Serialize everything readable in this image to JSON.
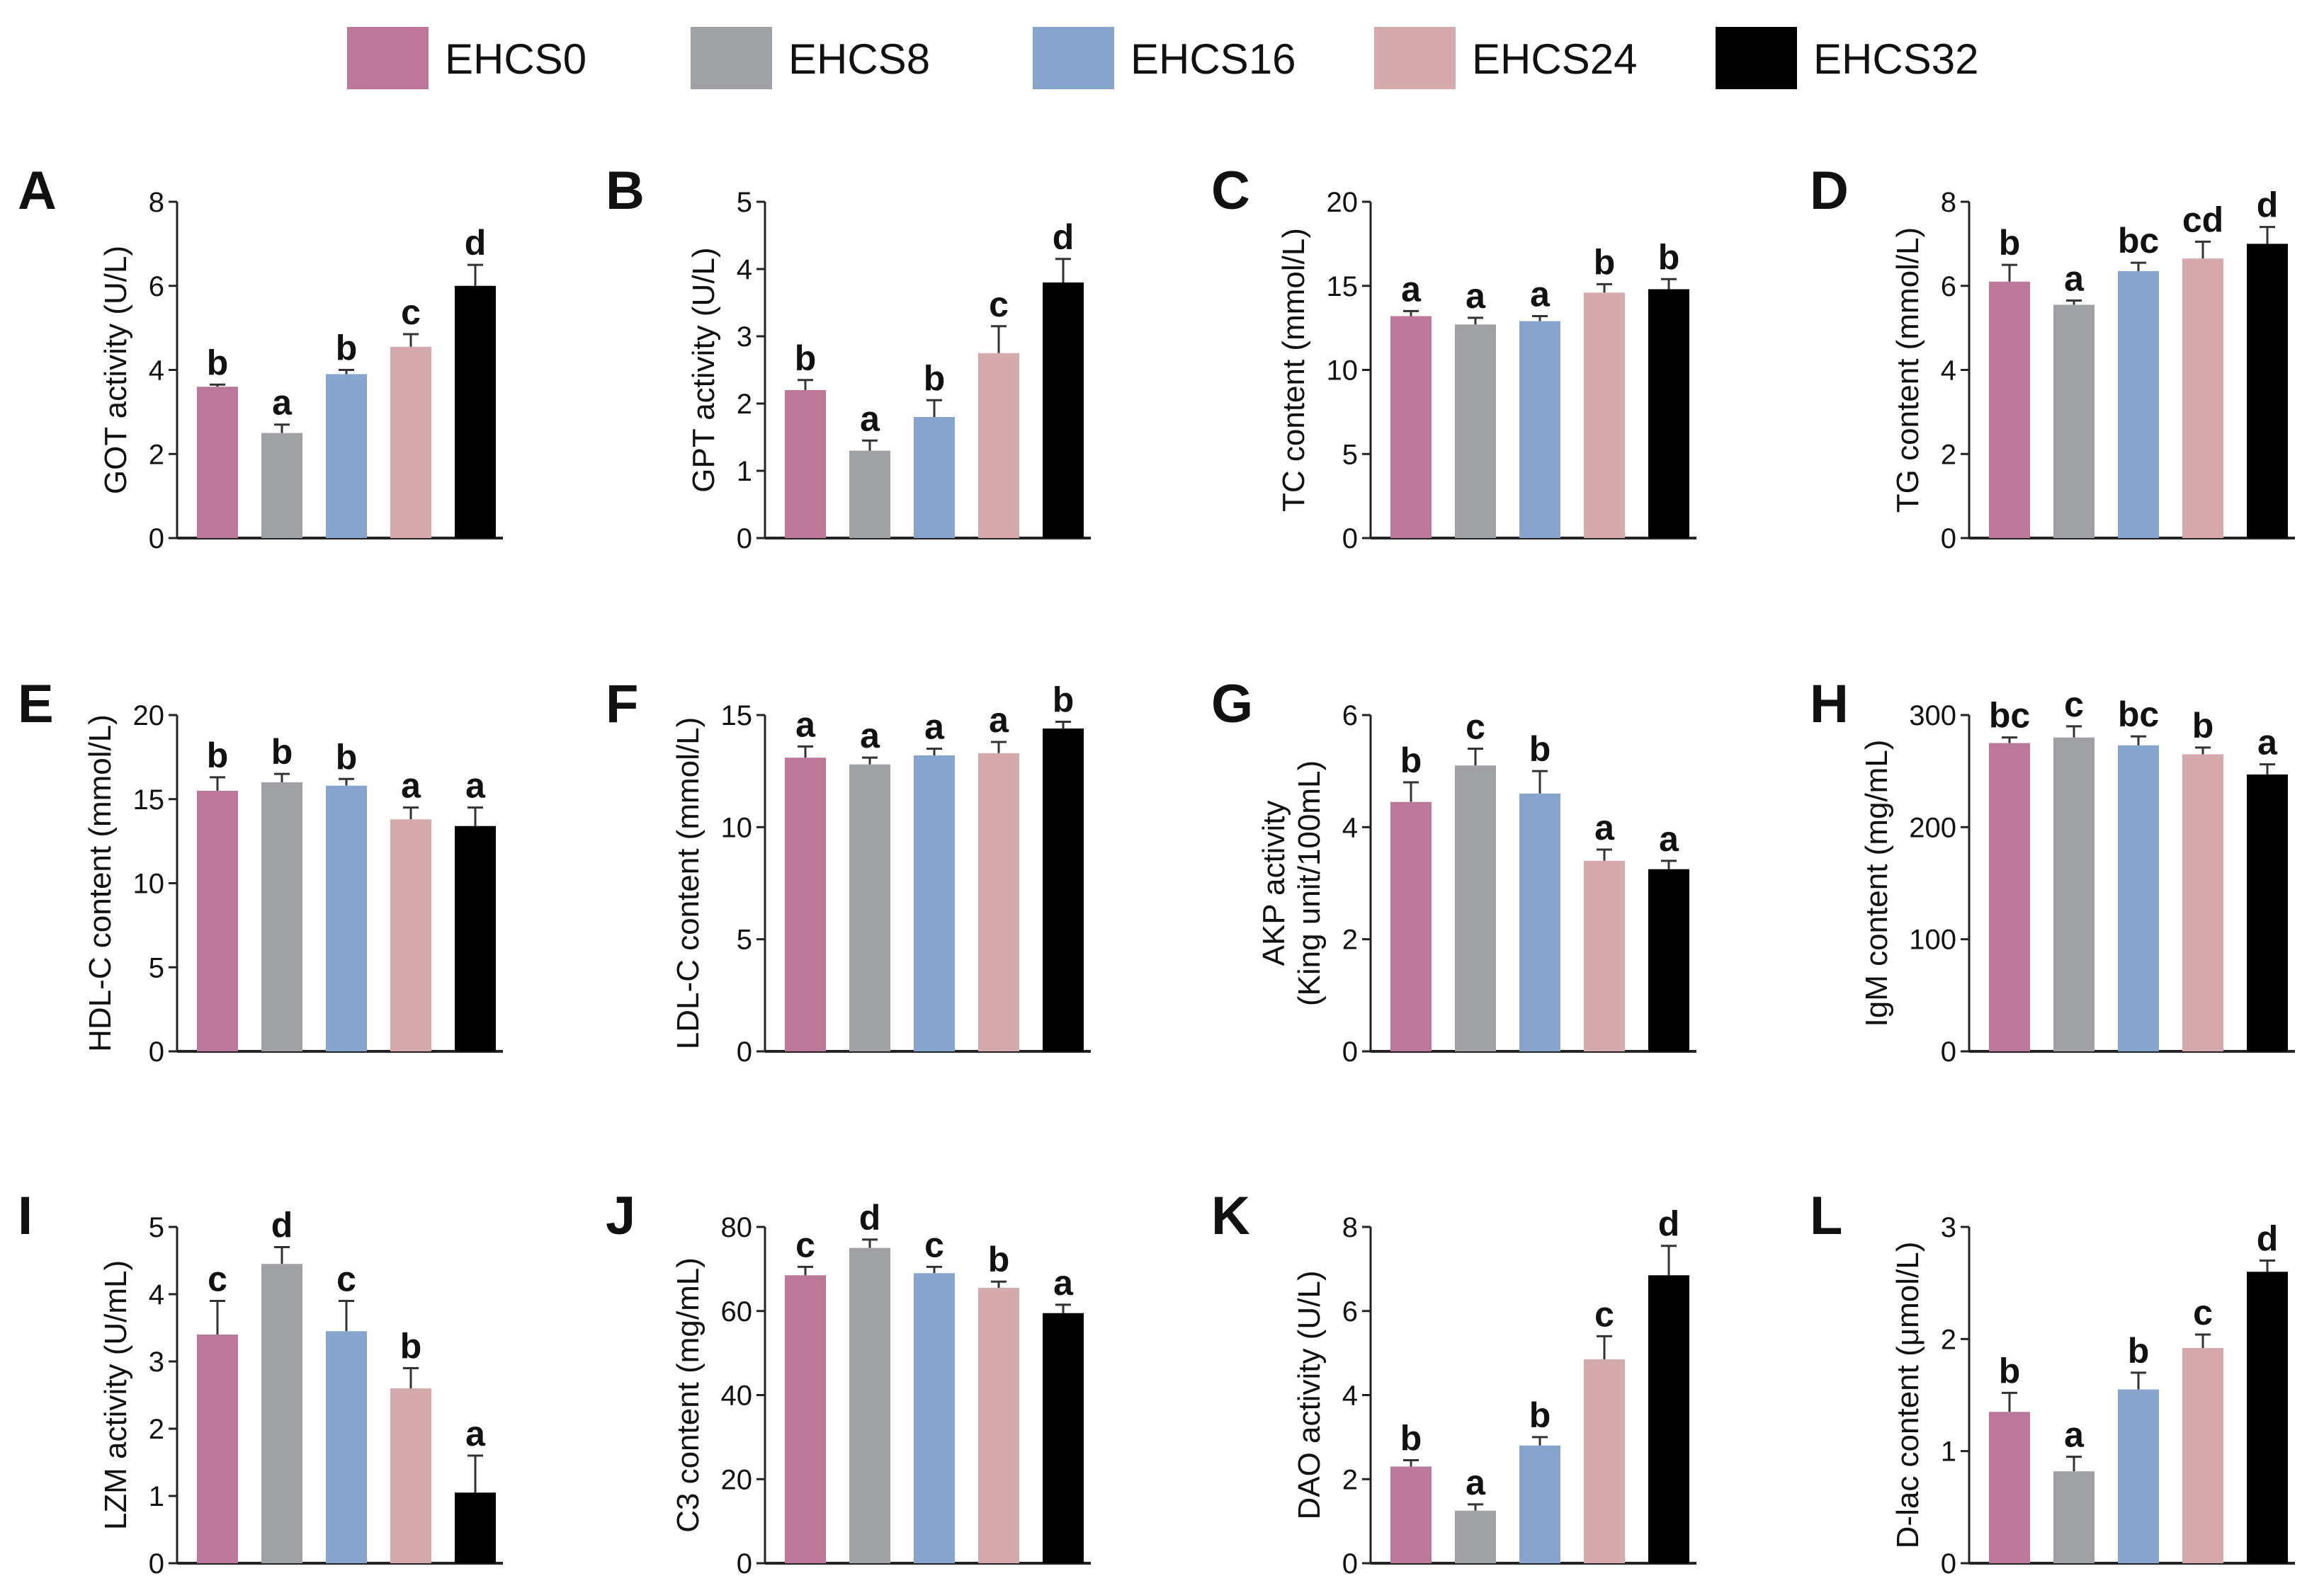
{
  "legend": [
    {
      "name": "EHCS0",
      "color": "#bc7898"
    },
    {
      "name": "EHCS8",
      "color": "#a0a1a5"
    },
    {
      "name": "EHCS16",
      "color": "#87a5cc"
    },
    {
      "name": "EHCS24",
      "color": "#d4aaad"
    },
    {
      "name": "EHCS32",
      "color": "#000000"
    }
  ],
  "chart_data": [
    {
      "type": "bar",
      "panel": "A",
      "ylabel": [
        "GOT activity (U/L)"
      ],
      "ylim": [
        0,
        8
      ],
      "ticks": [
        0,
        2,
        4,
        6,
        8
      ],
      "categories": [
        "EHCS0",
        "EHCS8",
        "EHCS16",
        "EHCS24",
        "EHCS32"
      ],
      "values": [
        3.6,
        2.5,
        3.9,
        4.55,
        6.0
      ],
      "errors": [
        0.05,
        0.2,
        0.1,
        0.3,
        0.5
      ],
      "letters": [
        "b",
        "a",
        "b",
        "c",
        "d"
      ]
    },
    {
      "type": "bar",
      "panel": "B",
      "ylabel": [
        "GPT activity (U/L)"
      ],
      "ylim": [
        0,
        5
      ],
      "ticks": [
        0,
        1,
        2,
        3,
        4,
        5
      ],
      "categories": [
        "EHCS0",
        "EHCS8",
        "EHCS16",
        "EHCS24",
        "EHCS32"
      ],
      "values": [
        2.2,
        1.3,
        1.8,
        2.75,
        3.8
      ],
      "errors": [
        0.15,
        0.15,
        0.25,
        0.4,
        0.35
      ],
      "letters": [
        "b",
        "a",
        "b",
        "c",
        "d"
      ]
    },
    {
      "type": "bar",
      "panel": "C",
      "ylabel": [
        "TC content (mmol/L)"
      ],
      "ylim": [
        0,
        20
      ],
      "ticks": [
        0,
        5,
        10,
        15,
        20
      ],
      "categories": [
        "EHCS0",
        "EHCS8",
        "EHCS16",
        "EHCS24",
        "EHCS32"
      ],
      "values": [
        13.2,
        12.7,
        12.9,
        14.6,
        14.8
      ],
      "errors": [
        0.3,
        0.4,
        0.3,
        0.5,
        0.6
      ],
      "letters": [
        "a",
        "a",
        "a",
        "b",
        "b"
      ]
    },
    {
      "type": "bar",
      "panel": "D",
      "ylabel": [
        "TG content (mmol/L)"
      ],
      "ylim": [
        0,
        8
      ],
      "ticks": [
        0,
        2,
        4,
        6,
        8
      ],
      "categories": [
        "EHCS0",
        "EHCS8",
        "EHCS16",
        "EHCS24",
        "EHCS32"
      ],
      "values": [
        6.1,
        5.55,
        6.35,
        6.65,
        7.0
      ],
      "errors": [
        0.4,
        0.1,
        0.2,
        0.4,
        0.4
      ],
      "letters": [
        "b",
        "a",
        "bc",
        "cd",
        "d"
      ]
    },
    {
      "type": "bar",
      "panel": "E",
      "ylabel": [
        "HDL-C content (mmol/L)"
      ],
      "ylim": [
        0,
        20
      ],
      "ticks": [
        0,
        5,
        10,
        15,
        20
      ],
      "categories": [
        "EHCS0",
        "EHCS8",
        "EHCS16",
        "EHCS24",
        "EHCS32"
      ],
      "values": [
        15.5,
        16.0,
        15.8,
        13.8,
        13.4
      ],
      "errors": [
        0.8,
        0.5,
        0.4,
        0.7,
        1.1
      ],
      "letters": [
        "b",
        "b",
        "b",
        "a",
        "a"
      ]
    },
    {
      "type": "bar",
      "panel": "F",
      "ylabel": [
        "LDL-C content (mmol/L)"
      ],
      "ylim": [
        0,
        15
      ],
      "ticks": [
        0,
        5,
        10,
        15
      ],
      "categories": [
        "EHCS0",
        "EHCS8",
        "EHCS16",
        "EHCS24",
        "EHCS32"
      ],
      "values": [
        13.1,
        12.8,
        13.2,
        13.3,
        14.4
      ],
      "errors": [
        0.5,
        0.3,
        0.3,
        0.5,
        0.3
      ],
      "letters": [
        "a",
        "a",
        "a",
        "a",
        "b"
      ]
    },
    {
      "type": "bar",
      "panel": "G",
      "ylabel": [
        "AKP activity",
        "(King unit/100mL)"
      ],
      "ylim": [
        0,
        6
      ],
      "ticks": [
        0,
        2,
        4,
        6
      ],
      "categories": [
        "EHCS0",
        "EHCS8",
        "EHCS16",
        "EHCS24",
        "EHCS32"
      ],
      "values": [
        4.45,
        5.1,
        4.6,
        3.4,
        3.25
      ],
      "errors": [
        0.35,
        0.3,
        0.4,
        0.2,
        0.15
      ],
      "letters": [
        "b",
        "c",
        "b",
        "a",
        "a"
      ]
    },
    {
      "type": "bar",
      "panel": "H",
      "ylabel": [
        "IgM content (mg/mL)"
      ],
      "ylim": [
        0,
        300
      ],
      "ticks": [
        0,
        100,
        200,
        300
      ],
      "categories": [
        "EHCS0",
        "EHCS8",
        "EHCS16",
        "EHCS24",
        "EHCS32"
      ],
      "values": [
        275,
        280,
        273,
        265,
        247
      ],
      "errors": [
        5,
        10,
        8,
        6,
        9
      ],
      "letters": [
        "bc",
        "c",
        "bc",
        "b",
        "a"
      ]
    },
    {
      "type": "bar",
      "panel": "I",
      "ylabel": [
        "LZM activity (U/mL)"
      ],
      "ylim": [
        0,
        5
      ],
      "ticks": [
        0,
        1,
        2,
        3,
        4,
        5
      ],
      "categories": [
        "EHCS0",
        "EHCS8",
        "EHCS16",
        "EHCS24",
        "EHCS32"
      ],
      "values": [
        3.4,
        4.45,
        3.45,
        2.6,
        1.05
      ],
      "errors": [
        0.5,
        0.25,
        0.45,
        0.3,
        0.55
      ],
      "letters": [
        "c",
        "d",
        "c",
        "b",
        "a"
      ]
    },
    {
      "type": "bar",
      "panel": "J",
      "ylabel": [
        "C3 content (mg/mL)"
      ],
      "ylim": [
        0,
        80
      ],
      "ticks": [
        0,
        20,
        40,
        60,
        80
      ],
      "categories": [
        "EHCS0",
        "EHCS8",
        "EHCS16",
        "EHCS24",
        "EHCS32"
      ],
      "values": [
        68.5,
        75,
        69,
        65.5,
        59.5
      ],
      "errors": [
        2,
        2,
        1.5,
        1.5,
        2
      ],
      "letters": [
        "c",
        "d",
        "c",
        "b",
        "a"
      ]
    },
    {
      "type": "bar",
      "panel": "K",
      "ylabel": [
        "DAO activity (U/L)"
      ],
      "ylim": [
        0,
        8
      ],
      "ticks": [
        0,
        2,
        4,
        6,
        8
      ],
      "categories": [
        "EHCS0",
        "EHCS8",
        "EHCS16",
        "EHCS24",
        "EHCS32"
      ],
      "values": [
        2.3,
        1.25,
        2.8,
        4.85,
        6.85
      ],
      "errors": [
        0.15,
        0.15,
        0.2,
        0.55,
        0.7
      ],
      "letters": [
        "b",
        "a",
        "b",
        "c",
        "d"
      ]
    },
    {
      "type": "bar",
      "panel": "L",
      "ylabel": [
        "D-lac content (μmol/L)"
      ],
      "ylim": [
        0,
        3
      ],
      "ticks": [
        0,
        1,
        2,
        3
      ],
      "categories": [
        "EHCS0",
        "EHCS8",
        "EHCS16",
        "EHCS24",
        "EHCS32"
      ],
      "values": [
        1.35,
        0.82,
        1.55,
        1.92,
        2.6
      ],
      "errors": [
        0.17,
        0.13,
        0.15,
        0.12,
        0.1
      ],
      "letters": [
        "b",
        "a",
        "b",
        "c",
        "d"
      ]
    }
  ]
}
